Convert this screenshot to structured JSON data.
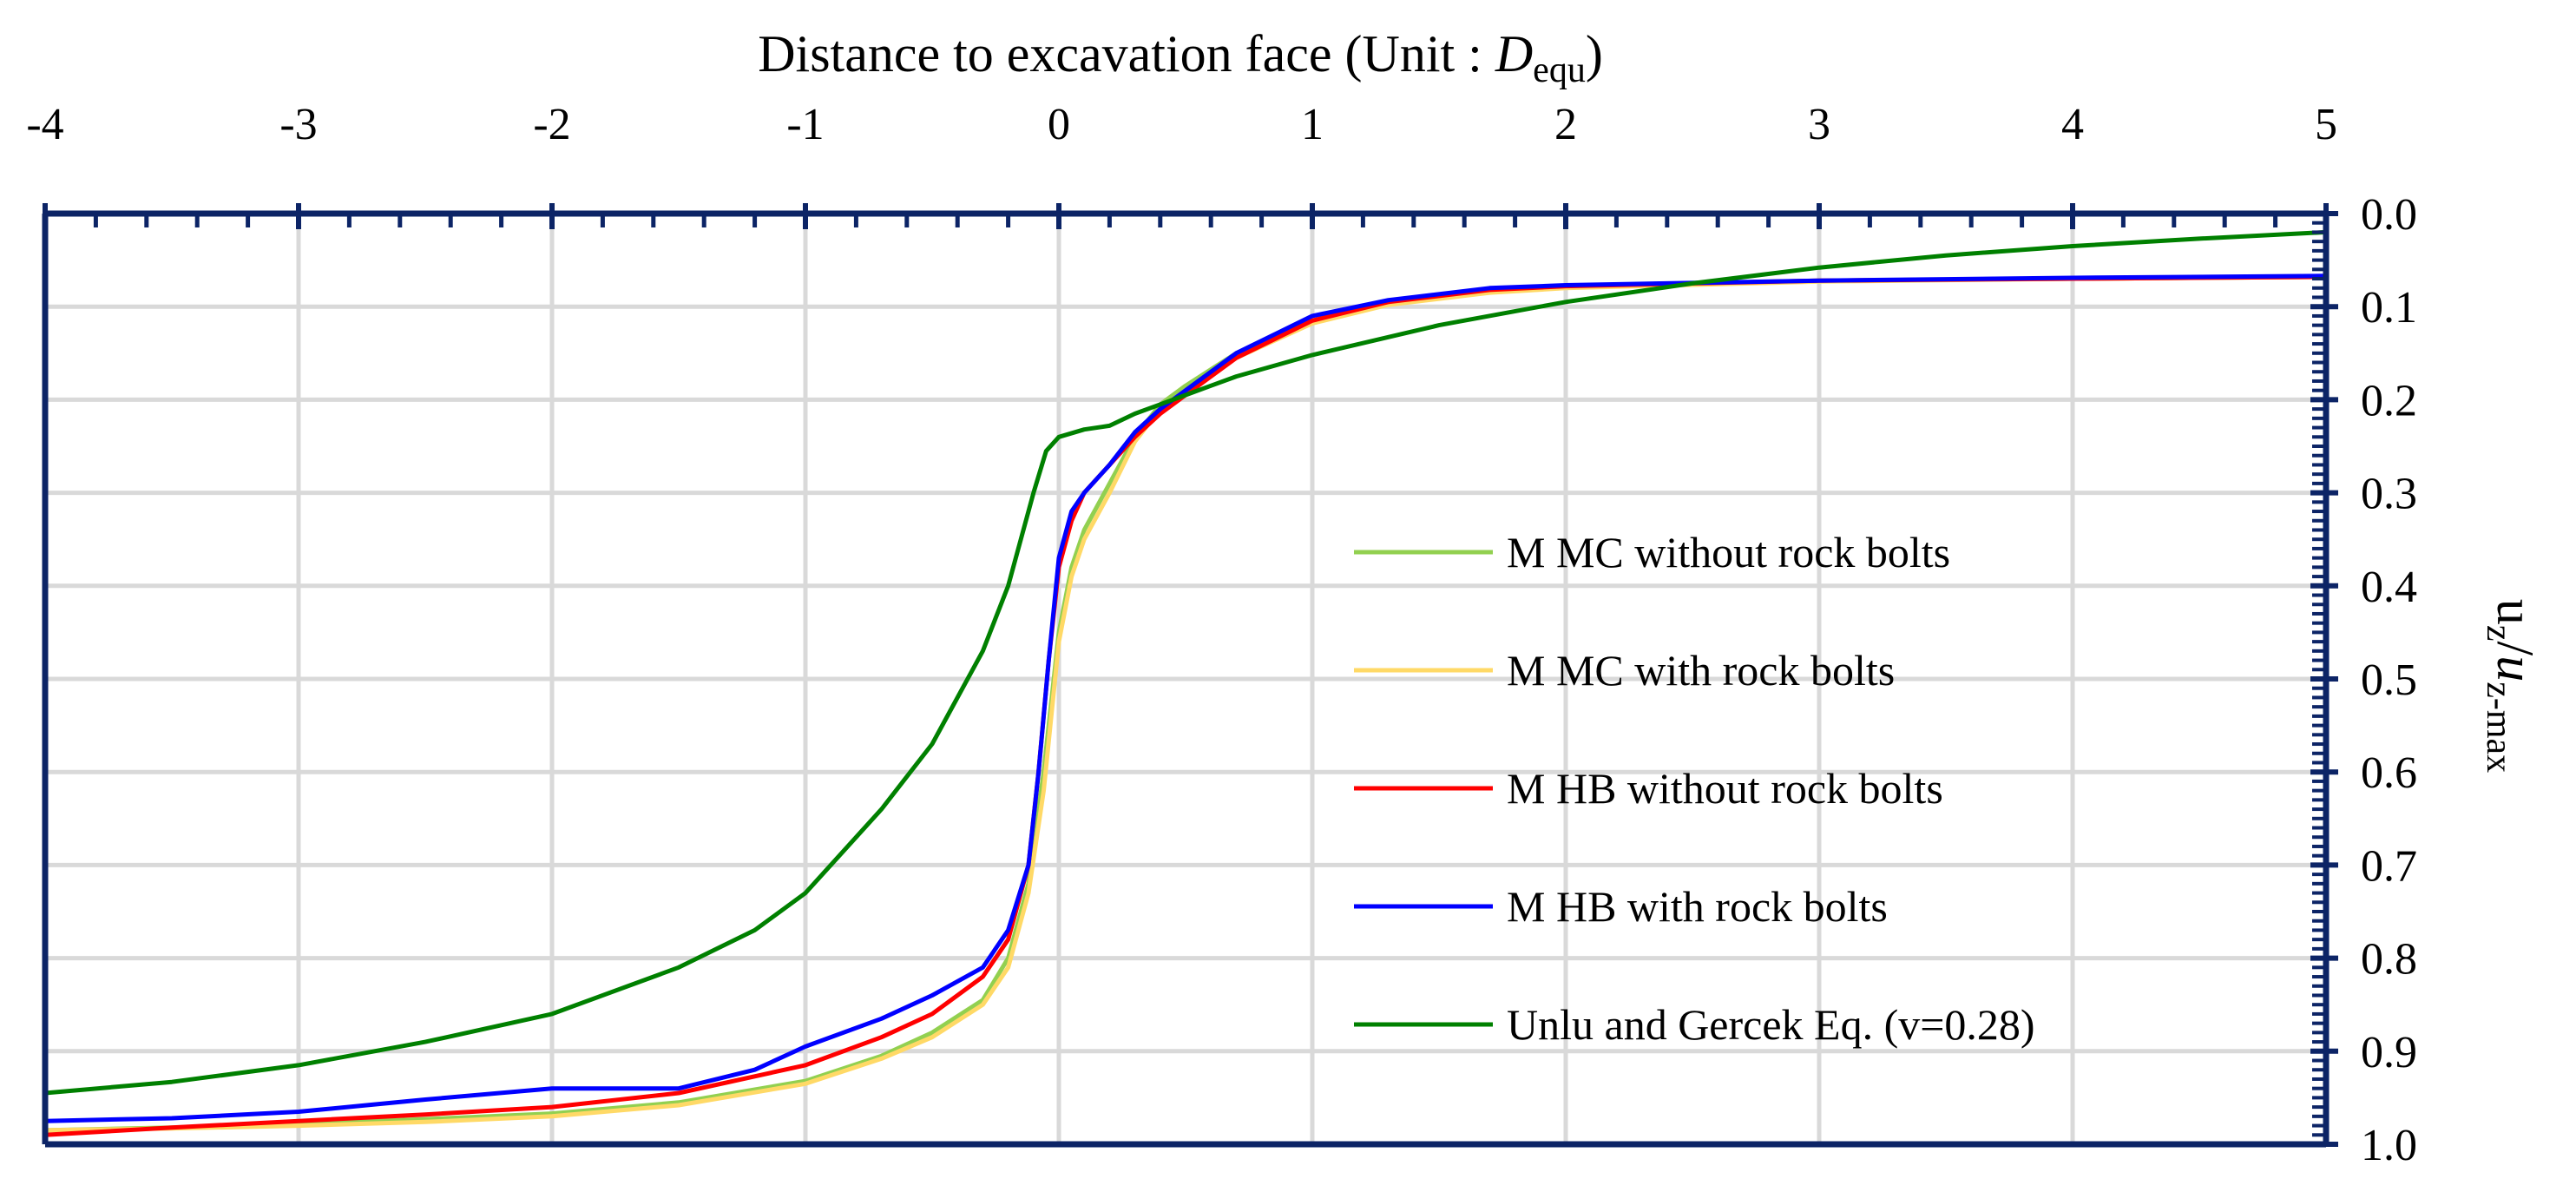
{
  "chart_data": {
    "type": "line",
    "title": "",
    "xlabel": {
      "text": "Distance to excavation face (Unit : ",
      "italic_part": "D",
      "subscript": "equ",
      "suffix": ")"
    },
    "ylabel": {
      "main": "u",
      "sub1": "z",
      "slash": "/",
      "main2": "u",
      "sub2": "z-max"
    },
    "xlim": [
      -4,
      5
    ],
    "ylim": [
      0.0,
      1.0
    ],
    "y_inverted": true,
    "x_axis_position": "top",
    "y_axis_position": "right",
    "grid": true,
    "x_ticks": [
      -4,
      -3,
      -2,
      -1,
      0,
      1,
      2,
      3,
      4,
      5
    ],
    "x_tick_labels": [
      "-4",
      "-3",
      "-2",
      "-1",
      "0",
      "1",
      "2",
      "3",
      "4",
      "5"
    ],
    "y_ticks": [
      0.0,
      0.1,
      0.2,
      0.3,
      0.4,
      0.5,
      0.6,
      0.7,
      0.8,
      0.9,
      1.0
    ],
    "y_tick_labels": [
      "0.0",
      "0.1",
      "0.2",
      "0.3",
      "0.4",
      "0.5",
      "0.6",
      "0.7",
      "0.8",
      "0.9",
      "1.0"
    ],
    "legend_position": "right-middle",
    "series": [
      {
        "name": "M MC without rock bolts",
        "color": "#92d050",
        "points": [
          [
            -4,
            0.985
          ],
          [
            -3.5,
            0.982
          ],
          [
            -3,
            0.978
          ],
          [
            -2.5,
            0.973
          ],
          [
            -2,
            0.967
          ],
          [
            -1.5,
            0.955
          ],
          [
            -1,
            0.932
          ],
          [
            -0.7,
            0.905
          ],
          [
            -0.5,
            0.88
          ],
          [
            -0.3,
            0.845
          ],
          [
            -0.2,
            0.8
          ],
          [
            -0.12,
            0.72
          ],
          [
            -0.06,
            0.6
          ],
          [
            0,
            0.45
          ],
          [
            0.05,
            0.38
          ],
          [
            0.1,
            0.34
          ],
          [
            0.2,
            0.29
          ],
          [
            0.3,
            0.24
          ],
          [
            0.4,
            0.205
          ],
          [
            0.5,
            0.185
          ],
          [
            0.7,
            0.15
          ],
          [
            1,
            0.115
          ],
          [
            1.3,
            0.095
          ],
          [
            1.7,
            0.082
          ],
          [
            2,
            0.078
          ],
          [
            3,
            0.072
          ],
          [
            4,
            0.07
          ],
          [
            5,
            0.068
          ]
        ]
      },
      {
        "name": "M MC with rock bolts",
        "color": "#ffd966",
        "points": [
          [
            -4,
            0.985
          ],
          [
            -3.5,
            0.983
          ],
          [
            -3,
            0.98
          ],
          [
            -2.5,
            0.976
          ],
          [
            -2,
            0.97
          ],
          [
            -1.5,
            0.958
          ],
          [
            -1,
            0.935
          ],
          [
            -0.7,
            0.908
          ],
          [
            -0.5,
            0.885
          ],
          [
            -0.3,
            0.85
          ],
          [
            -0.2,
            0.81
          ],
          [
            -0.12,
            0.73
          ],
          [
            -0.06,
            0.62
          ],
          [
            0,
            0.46
          ],
          [
            0.05,
            0.39
          ],
          [
            0.1,
            0.35
          ],
          [
            0.2,
            0.3
          ],
          [
            0.3,
            0.245
          ],
          [
            0.4,
            0.21
          ],
          [
            0.5,
            0.19
          ],
          [
            0.7,
            0.155
          ],
          [
            1,
            0.118
          ],
          [
            1.3,
            0.098
          ],
          [
            1.7,
            0.085
          ],
          [
            2,
            0.08
          ],
          [
            3,
            0.073
          ],
          [
            4,
            0.07
          ],
          [
            5,
            0.068
          ]
        ]
      },
      {
        "name": "M HB without rock bolts",
        "color": "#ff0000",
        "points": [
          [
            -4,
            0.99
          ],
          [
            -3.5,
            0.982
          ],
          [
            -3,
            0.975
          ],
          [
            -2.5,
            0.968
          ],
          [
            -2,
            0.96
          ],
          [
            -1.5,
            0.945
          ],
          [
            -1,
            0.915
          ],
          [
            -0.7,
            0.885
          ],
          [
            -0.5,
            0.86
          ],
          [
            -0.3,
            0.82
          ],
          [
            -0.2,
            0.78
          ],
          [
            -0.12,
            0.7
          ],
          [
            -0.08,
            0.6
          ],
          [
            -0.04,
            0.48
          ],
          [
            0,
            0.38
          ],
          [
            0.05,
            0.33
          ],
          [
            0.1,
            0.3
          ],
          [
            0.2,
            0.27
          ],
          [
            0.3,
            0.24
          ],
          [
            0.4,
            0.215
          ],
          [
            0.5,
            0.195
          ],
          [
            0.7,
            0.155
          ],
          [
            1,
            0.115
          ],
          [
            1.3,
            0.095
          ],
          [
            1.7,
            0.082
          ],
          [
            2,
            0.078
          ],
          [
            3,
            0.072
          ],
          [
            4,
            0.07
          ],
          [
            5,
            0.068
          ]
        ]
      },
      {
        "name": "M HB with rock bolts",
        "color": "#0000ff",
        "points": [
          [
            -4,
            0.975
          ],
          [
            -3.5,
            0.972
          ],
          [
            -3,
            0.965
          ],
          [
            -2.5,
            0.952
          ],
          [
            -2,
            0.94
          ],
          [
            -1.5,
            0.94
          ],
          [
            -1.2,
            0.92
          ],
          [
            -1,
            0.895
          ],
          [
            -0.7,
            0.865
          ],
          [
            -0.5,
            0.84
          ],
          [
            -0.3,
            0.81
          ],
          [
            -0.2,
            0.77
          ],
          [
            -0.12,
            0.7
          ],
          [
            -0.08,
            0.6
          ],
          [
            -0.04,
            0.48
          ],
          [
            0,
            0.37
          ],
          [
            0.05,
            0.32
          ],
          [
            0.1,
            0.3
          ],
          [
            0.2,
            0.27
          ],
          [
            0.3,
            0.235
          ],
          [
            0.4,
            0.21
          ],
          [
            0.5,
            0.19
          ],
          [
            0.7,
            0.15
          ],
          [
            1,
            0.11
          ],
          [
            1.3,
            0.093
          ],
          [
            1.7,
            0.08
          ],
          [
            2,
            0.077
          ],
          [
            3,
            0.072
          ],
          [
            4,
            0.069
          ],
          [
            5,
            0.067
          ]
        ]
      },
      {
        "name": "Unlu and Gercek Eq. (v=0.28)",
        "color": "#008000",
        "points": [
          [
            -4,
            0.945
          ],
          [
            -3.5,
            0.933
          ],
          [
            -3,
            0.915
          ],
          [
            -2.5,
            0.89
          ],
          [
            -2,
            0.86
          ],
          [
            -1.5,
            0.81
          ],
          [
            -1.2,
            0.77
          ],
          [
            -1,
            0.73
          ],
          [
            -0.7,
            0.64
          ],
          [
            -0.5,
            0.57
          ],
          [
            -0.3,
            0.47
          ],
          [
            -0.2,
            0.4
          ],
          [
            -0.1,
            0.3
          ],
          [
            -0.05,
            0.255
          ],
          [
            0,
            0.24
          ],
          [
            0.1,
            0.232
          ],
          [
            0.2,
            0.228
          ],
          [
            0.3,
            0.215
          ],
          [
            0.4,
            0.205
          ],
          [
            0.5,
            0.195
          ],
          [
            0.7,
            0.175
          ],
          [
            1,
            0.152
          ],
          [
            1.5,
            0.12
          ],
          [
            2,
            0.095
          ],
          [
            2.5,
            0.075
          ],
          [
            3,
            0.058
          ],
          [
            3.5,
            0.045
          ],
          [
            4,
            0.035
          ],
          [
            4.5,
            0.027
          ],
          [
            5,
            0.02
          ]
        ]
      }
    ]
  }
}
